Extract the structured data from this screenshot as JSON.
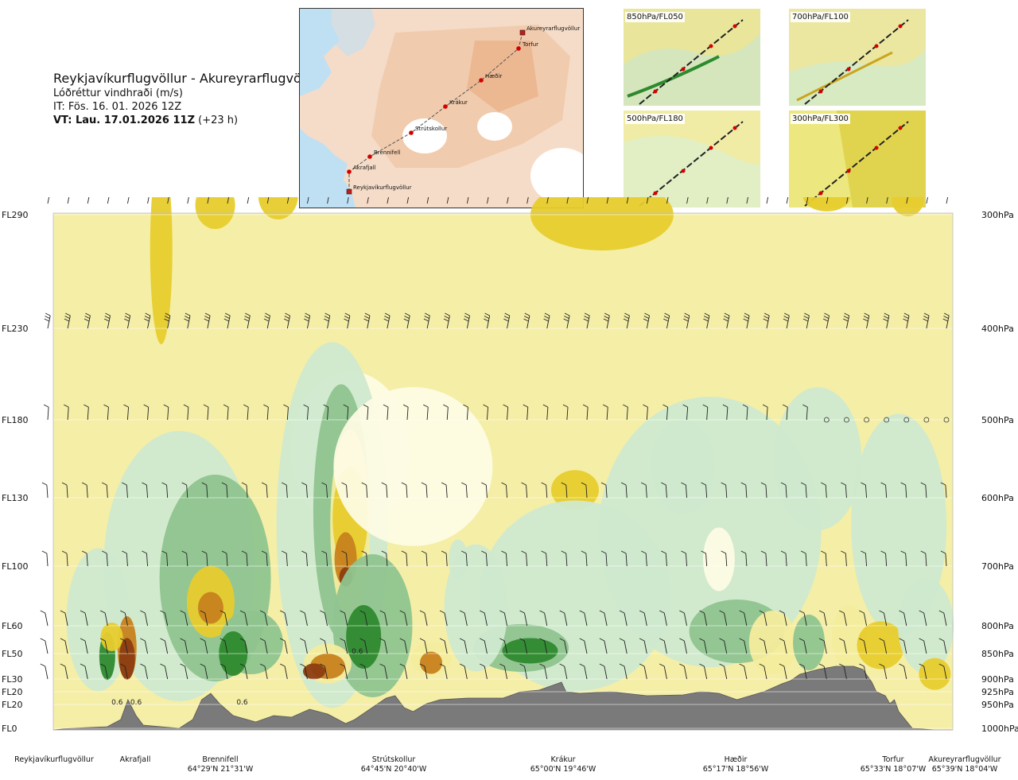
{
  "title": {
    "route": "Reykjavíkurflugvöllur - Akureyrarflugvöllur",
    "variable": "Lóðréttur vindhraði (m/s)",
    "it": "IT: Fös. 16. 01. 2026 12Z",
    "vt_bold": "VT: Lau. 17.01.2026 11Z",
    "vt_rest": " (+23 h)"
  },
  "overview_map": {
    "waypoints": [
      {
        "name": "Reykjavíkurflugvöllur"
      },
      {
        "name": "Akrafjall"
      },
      {
        "name": "Brennifell"
      },
      {
        "name": "Strútskollur"
      },
      {
        "name": "Krákur"
      },
      {
        "name": "Hæðir"
      },
      {
        "name": "Torfur"
      },
      {
        "name": "Akureyrarflugvöllur"
      }
    ]
  },
  "mini_maps": [
    {
      "label": "850hPa/FL050"
    },
    {
      "label": "700hPa/FL100"
    },
    {
      "label": "500hPa/FL180"
    },
    {
      "label": "300hPa/FL300"
    }
  ],
  "chart_data": {
    "type": "heatmap",
    "title": "Lóðréttur vindhraði (m/s)",
    "xlabel": "",
    "ylabel": "",
    "y_axis_left_flight_levels": [
      "FL290",
      "FL230",
      "FL180",
      "FL130",
      "FL100",
      "FL60",
      "FL50",
      "FL30",
      "FL20",
      "FL20",
      "FL0"
    ],
    "y_axis_right_pressure_hpa": [
      "300hPa",
      "400hPa",
      "500hPa",
      "600hPa",
      "700hPa",
      "800hPa",
      "850hPa",
      "900hPa",
      "925hPa",
      "950hPa",
      "1000hPa"
    ],
    "pressure_values_hpa": [
      300,
      400,
      500,
      600,
      700,
      800,
      850,
      900,
      925,
      950,
      1000
    ],
    "x_locations": [
      {
        "name": "Reykjavíkurflugvöllur",
        "coord": "",
        "fraction": 0.0
      },
      {
        "name": "Akrafjall",
        "coord": "",
        "fraction": 0.087
      },
      {
        "name": "Brennifell",
        "coord": "64°29'N 21°31'W",
        "fraction": 0.18
      },
      {
        "name": "Strútskollur",
        "coord": "64°45'N 20°40'W",
        "fraction": 0.365
      },
      {
        "name": "Krákur",
        "coord": "65°00'N 19°46'W",
        "fraction": 0.55
      },
      {
        "name": "Hæðir",
        "coord": "65°17'N 18°56'W",
        "fraction": 0.735
      },
      {
        "name": "Torfur",
        "coord": "65°33'N 18°07'W",
        "fraction": 0.92
      },
      {
        "name": "Akureyrarflugvöllur",
        "coord": "65°39'N 18°04'W",
        "fraction": 1.0
      }
    ],
    "contour_labels": [
      "0.6",
      "0.6",
      "0.6",
      "0.6"
    ],
    "color_scale": {
      "strong_up": "#2e8a2e",
      "moderate_up": "#8fc48f",
      "weak_up": "#cfe9cf",
      "near_zero": "#fdfbe3",
      "weak_down": "#f3ec9c",
      "moderate_down": "#e7cc2d",
      "strong_down": "#c7821e",
      "very_strong_down": "#8c3d12",
      "background": "#f5eea6",
      "terrain": "#7a7a7a"
    },
    "wind_barb_levels_hpa": [
      300,
      400,
      500,
      600,
      700,
      800,
      850,
      900
    ]
  }
}
